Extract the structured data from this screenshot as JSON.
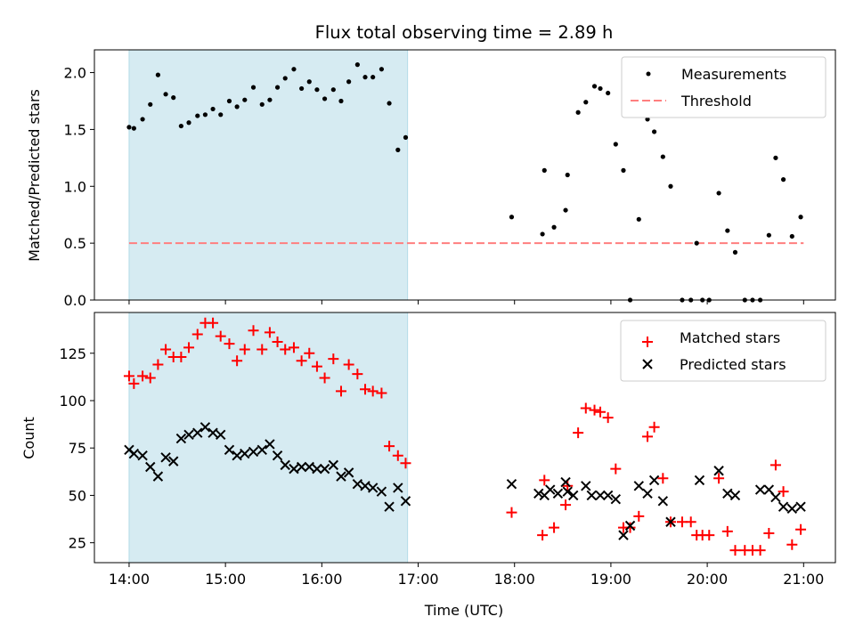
{
  "chart_data": {
    "type": "scatter",
    "title": "Flux total observing time = 2.89 h",
    "xlabel": "Time (UTC)",
    "x_unit": "hours since 14:00 UTC",
    "xlim": [
      -0.36,
      7.33
    ],
    "x_ticks": [
      {
        "value": 0,
        "label": "14:00"
      },
      {
        "value": 1,
        "label": "15:00"
      },
      {
        "value": 2,
        "label": "16:00"
      },
      {
        "value": 3,
        "label": "17:00"
      },
      {
        "value": 4,
        "label": "18:00"
      },
      {
        "value": 5,
        "label": "19:00"
      },
      {
        "value": 6,
        "label": "20:00"
      },
      {
        "value": 7,
        "label": "21:00"
      }
    ],
    "shaded_span": {
      "start": 0.0,
      "end": 2.89,
      "color": "#add8e6"
    },
    "panels": [
      {
        "id": "ratio",
        "ylabel": "Matched/Predicted stars",
        "ylim": [
          0,
          2.2
        ],
        "y_ticks": [
          {
            "value": 0.0,
            "label": "0.0"
          },
          {
            "value": 0.5,
            "label": "0.5"
          },
          {
            "value": 1.0,
            "label": "1.0"
          },
          {
            "value": 1.5,
            "label": "1.5"
          },
          {
            "value": 2.0,
            "label": "2.0"
          }
        ],
        "legend": {
          "position": "upper right",
          "entries": [
            {
              "label": "Measurements",
              "marker": "dot",
              "color": "#000000"
            },
            {
              "label": "Threshold",
              "marker": "dashed-line",
              "color": "#ff7f7f"
            }
          ]
        },
        "threshold": {
          "label": "Threshold",
          "value": 0.5,
          "x_range": [
            0.0,
            7.0
          ],
          "color": "#ff7f7f"
        },
        "series": [
          {
            "name": "Measurements",
            "marker": "dot",
            "color": "#000000",
            "x": [
              0.0,
              0.05,
              0.14,
              0.22,
              0.3,
              0.38,
              0.46,
              0.54,
              0.62,
              0.71,
              0.79,
              0.87,
              0.95,
              1.04,
              1.12,
              1.2,
              1.29,
              1.38,
              1.46,
              1.54,
              1.62,
              1.71,
              1.79,
              1.87,
              1.95,
              2.03,
              2.12,
              2.2,
              2.28,
              2.37,
              2.45,
              2.53,
              2.62,
              2.7,
              2.79,
              2.87,
              3.97,
              4.29,
              4.31,
              4.41,
              4.53,
              4.55,
              4.66,
              4.74,
              4.83,
              4.89,
              4.97,
              5.05,
              5.13,
              5.2,
              5.29,
              5.38,
              5.45,
              5.54,
              5.62,
              5.74,
              5.83,
              5.89,
              5.95,
              6.02,
              6.12,
              6.21,
              6.29,
              6.39,
              6.47,
              6.55,
              6.64,
              6.71,
              6.79,
              6.88,
              6.97
            ],
            "y": [
              1.52,
              1.51,
              1.59,
              1.72,
              1.98,
              1.81,
              1.78,
              1.53,
              1.56,
              1.62,
              1.63,
              1.68,
              1.63,
              1.75,
              1.7,
              1.76,
              1.87,
              1.72,
              1.76,
              1.87,
              1.95,
              2.03,
              1.86,
              1.92,
              1.85,
              1.77,
              1.85,
              1.75,
              1.92,
              2.07,
              1.96,
              1.96,
              2.03,
              1.73,
              1.32,
              1.43,
              0.73,
              0.58,
              1.14,
              0.64,
              0.79,
              1.1,
              1.65,
              1.74,
              1.88,
              1.86,
              1.82,
              1.37,
              1.14,
              0.0,
              0.71,
              1.59,
              1.48,
              1.26,
              1.0,
              0.0,
              0.0,
              0.5,
              0.0,
              0.0,
              0.94,
              0.61,
              0.42,
              0.0,
              0.0,
              0.0,
              0.57,
              1.25,
              1.06,
              0.56,
              0.73
            ]
          }
        ]
      },
      {
        "id": "counts",
        "ylabel": "Count",
        "ylim": [
          14.5,
          146.5
        ],
        "y_ticks": [
          {
            "value": 25,
            "label": "25"
          },
          {
            "value": 50,
            "label": "50"
          },
          {
            "value": 75,
            "label": "75"
          },
          {
            "value": 100,
            "label": "100"
          },
          {
            "value": 125,
            "label": "125"
          }
        ],
        "legend": {
          "position": "upper right",
          "entries": [
            {
              "label": "Matched stars",
              "marker": "plus",
              "color": "#ff0000"
            },
            {
              "label": "Predicted stars",
              "marker": "x",
              "color": "#000000"
            }
          ]
        },
        "series": [
          {
            "name": "Matched stars",
            "marker": "plus",
            "color": "#ff0000",
            "x": [
              0.0,
              0.05,
              0.14,
              0.22,
              0.3,
              0.38,
              0.46,
              0.54,
              0.62,
              0.71,
              0.79,
              0.87,
              0.95,
              1.04,
              1.12,
              1.2,
              1.29,
              1.38,
              1.46,
              1.54,
              1.62,
              1.71,
              1.79,
              1.87,
              1.95,
              2.03,
              2.12,
              2.2,
              2.28,
              2.37,
              2.45,
              2.53,
              2.62,
              2.7,
              2.79,
              2.87,
              3.97,
              4.29,
              4.31,
              4.41,
              4.53,
              4.55,
              4.66,
              4.74,
              4.83,
              4.89,
              4.97,
              5.05,
              5.13,
              5.2,
              5.29,
              5.38,
              5.45,
              5.54,
              5.62,
              5.74,
              5.83,
              5.89,
              5.95,
              6.02,
              6.12,
              6.21,
              6.29,
              6.39,
              6.47,
              6.55,
              6.64,
              6.71,
              6.79,
              6.88,
              6.97
            ],
            "y": [
              113,
              109,
              113,
              112,
              119,
              127,
              123,
              123,
              128,
              135,
              141,
              141,
              134,
              130,
              121,
              127,
              137,
              127,
              136,
              131,
              127,
              128,
              121,
              125,
              118,
              112,
              122,
              105,
              119,
              114,
              106,
              105,
              104,
              76,
              71,
              67,
              41,
              29,
              58,
              33,
              45,
              55,
              83,
              96,
              95,
              94,
              91,
              64,
              33,
              33,
              39,
              81,
              86,
              59,
              36,
              36,
              36,
              29,
              29,
              29,
              59,
              31,
              21,
              21,
              21,
              21,
              30,
              66,
              52,
              24,
              32
            ]
          },
          {
            "name": "Predicted stars",
            "marker": "x",
            "color": "#000000",
            "x": [
              0.0,
              0.05,
              0.14,
              0.22,
              0.3,
              0.38,
              0.46,
              0.54,
              0.62,
              0.71,
              0.79,
              0.87,
              0.95,
              1.04,
              1.12,
              1.2,
              1.29,
              1.38,
              1.46,
              1.54,
              1.62,
              1.71,
              1.79,
              1.87,
              1.95,
              2.03,
              2.12,
              2.2,
              2.28,
              2.37,
              2.45,
              2.53,
              2.62,
              2.7,
              2.79,
              2.87,
              3.97,
              4.25,
              4.31,
              4.37,
              4.45,
              4.53,
              4.55,
              4.61,
              4.74,
              4.8,
              4.89,
              4.97,
              5.05,
              5.13,
              5.2,
              5.29,
              5.38,
              5.45,
              5.54,
              5.62,
              5.92,
              6.12,
              6.21,
              6.29,
              6.55,
              6.64,
              6.71,
              6.79,
              6.88,
              6.97
            ],
            "y": [
              74,
              72,
              71,
              65,
              60,
              70,
              68,
              80,
              82,
              83,
              86,
              83,
              82,
              74,
              71,
              72,
              73,
              74,
              77,
              71,
              66,
              64,
              65,
              65,
              64,
              64,
              66,
              60,
              62,
              56,
              55,
              54,
              52,
              44,
              54,
              47,
              56,
              51,
              50,
              53,
              51,
              57,
              52,
              50,
              55,
              50,
              50,
              50,
              48,
              29,
              34,
              55,
              51,
              58,
              47,
              36,
              58,
              63,
              51,
              50,
              53,
              53,
              49,
              44,
              43,
              44
            ]
          }
        ]
      }
    ]
  }
}
